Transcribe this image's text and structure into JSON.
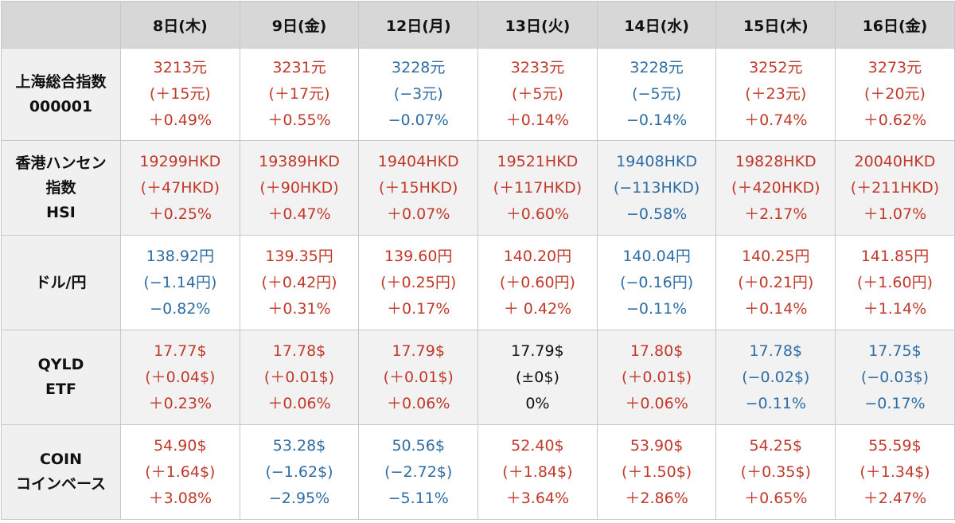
{
  "colors": {
    "up": "#c0392b",
    "down": "#2e6da4",
    "flat": "#111111",
    "header_bg": "#d7d7d7"
  },
  "headers": [
    "8日(木)",
    "9日(金)",
    "12日(月)",
    "13日(火)",
    "14日(水)",
    "15日(木)",
    "16日(金)"
  ],
  "rows": [
    {
      "label": [
        "上海総合指数",
        "000001"
      ],
      "cells": [
        {
          "dir": "up",
          "lines": [
            "3213元",
            "(＋15元)",
            "＋0.49%"
          ]
        },
        {
          "dir": "up",
          "lines": [
            "3231元",
            "(＋17元)",
            "＋0.55%"
          ]
        },
        {
          "dir": "down",
          "lines": [
            "3228元",
            "(−3元)",
            "−0.07%"
          ]
        },
        {
          "dir": "up",
          "lines": [
            "3233元",
            "(＋5元)",
            "＋0.14%"
          ]
        },
        {
          "dir": "down",
          "lines": [
            "3228元",
            "(−5元)",
            "−0.14%"
          ]
        },
        {
          "dir": "up",
          "lines": [
            "3252元",
            "(＋23元)",
            "＋0.74%"
          ]
        },
        {
          "dir": "up",
          "lines": [
            "3273元",
            "(＋20元)",
            "＋0.62%"
          ]
        }
      ]
    },
    {
      "label": [
        "香港ハンセン",
        "指数",
        "HSI"
      ],
      "cells": [
        {
          "dir": "up",
          "lines": [
            "19299HKD",
            "(＋47HKD)",
            "＋0.25%"
          ]
        },
        {
          "dir": "up",
          "lines": [
            "19389HKD",
            "(＋90HKD)",
            "＋0.47%"
          ]
        },
        {
          "dir": "up",
          "lines": [
            "19404HKD",
            "(＋15HKD)",
            "＋0.07%"
          ]
        },
        {
          "dir": "up",
          "lines": [
            "19521HKD",
            "(＋117HKD)",
            "＋0.60%"
          ]
        },
        {
          "dir": "down",
          "lines": [
            "19408HKD",
            "(−113HKD)",
            "−0.58%"
          ]
        },
        {
          "dir": "up",
          "lines": [
            "19828HKD",
            "(＋420HKD)",
            "＋2.17%"
          ]
        },
        {
          "dir": "up",
          "lines": [
            "20040HKD",
            "(＋211HKD)",
            "＋1.07%"
          ]
        }
      ]
    },
    {
      "label": [
        "ドル/円"
      ],
      "cells": [
        {
          "dir": "down",
          "lines": [
            "138.92円",
            "(−1.14円)",
            "−0.82%"
          ]
        },
        {
          "dir": "up",
          "lines": [
            "139.35円",
            "(＋0.42円)",
            "＋0.31%"
          ]
        },
        {
          "dir": "up",
          "lines": [
            "139.60円",
            "(＋0.25円)",
            "＋0.17%"
          ]
        },
        {
          "dir": "up",
          "lines": [
            "140.20円",
            "(＋0.60円)",
            "＋ 0.42%"
          ]
        },
        {
          "dir": "down",
          "lines": [
            "140.04円",
            "(−0.16円)",
            "−0.11%"
          ]
        },
        {
          "dir": "up",
          "lines": [
            "140.25円",
            "(＋0.21円)",
            "＋0.14%"
          ]
        },
        {
          "dir": "up",
          "lines": [
            "141.85円",
            "(＋1.60円)",
            "＋1.14%"
          ]
        }
      ]
    },
    {
      "label": [
        "QYLD",
        "ETF"
      ],
      "cells": [
        {
          "dir": "up",
          "lines": [
            "17.77$",
            "(＋0.04$)",
            "＋0.23%"
          ]
        },
        {
          "dir": "up",
          "lines": [
            "17.78$",
            "(＋0.01$)",
            "＋0.06%"
          ]
        },
        {
          "dir": "up",
          "lines": [
            "17.79$",
            "(＋0.01$)",
            "＋0.06%"
          ]
        },
        {
          "dir": "flat",
          "lines": [
            "17.79$",
            "(±0$)",
            "0%"
          ]
        },
        {
          "dir": "up",
          "lines": [
            "17.80$",
            "(＋0.01$)",
            "＋0.06%"
          ]
        },
        {
          "dir": "down",
          "lines": [
            "17.78$",
            "(−0.02$)",
            "−0.11%"
          ]
        },
        {
          "dir": "down",
          "lines": [
            "17.75$",
            "(−0.03$)",
            "−0.17%"
          ]
        }
      ]
    },
    {
      "label": [
        "COIN",
        "コインベース"
      ],
      "cells": [
        {
          "dir": "up",
          "lines": [
            "54.90$",
            "(＋1.64$)",
            "＋3.08%"
          ]
        },
        {
          "dir": "down",
          "lines": [
            "53.28$",
            "(−1.62$)",
            "−2.95%"
          ]
        },
        {
          "dir": "down",
          "lines": [
            "50.56$",
            "(−2.72$)",
            "−5.11%"
          ]
        },
        {
          "dir": "up",
          "lines": [
            "52.40$",
            "(＋1.84$)",
            "＋3.64%"
          ]
        },
        {
          "dir": "up",
          "lines": [
            "53.90$",
            "(＋1.50$)",
            "＋2.86%"
          ]
        },
        {
          "dir": "up",
          "lines": [
            "54.25$",
            "(＋0.35$)",
            "＋0.65%"
          ]
        },
        {
          "dir": "up",
          "lines": [
            "55.59$",
            "(＋1.34$)",
            "＋2.47%"
          ]
        }
      ]
    }
  ]
}
